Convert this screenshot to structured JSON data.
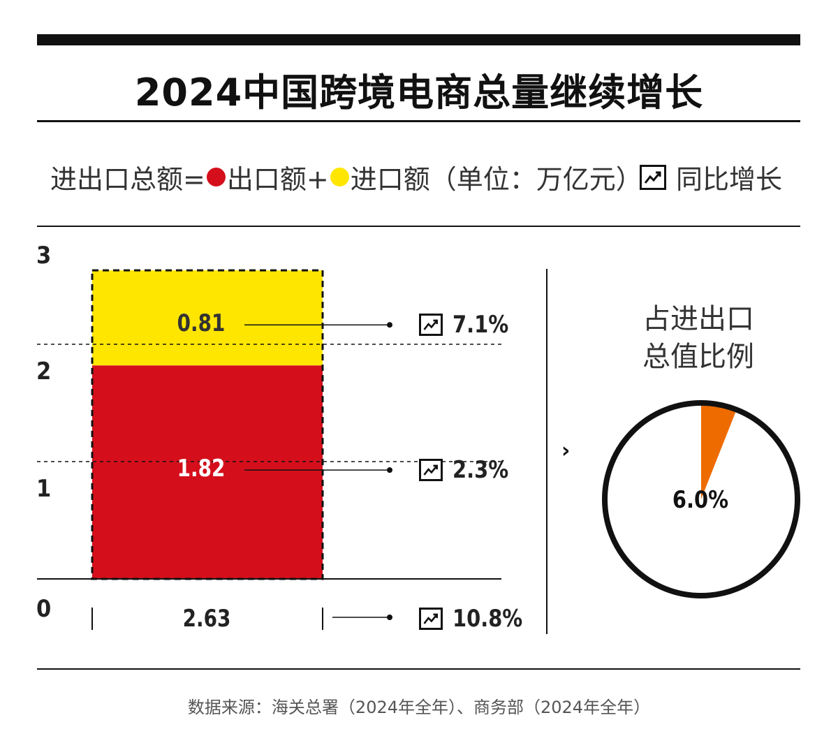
{
  "title": "2024中国跨境电商总量继续增长",
  "legend": {
    "formula_prefix": "进出口总额=",
    "export_label": "出口额+",
    "import_label": "进口额（单位：万亿元）",
    "growth_label": "同比增长",
    "colors": {
      "export": "#d40f1b",
      "import": "#ffe600",
      "share": "#ee6b00"
    }
  },
  "pie": {
    "title_line1": "占进出口",
    "title_line2": "总值比例",
    "share_label": "6.0%"
  },
  "chevron": "›",
  "source": "数据来源：海关总署（2024年全年）、商务部（2024年全年）",
  "chart_data": [
    {
      "type": "bar",
      "stacked": true,
      "categories": [
        "2024"
      ],
      "series": [
        {
          "name": "出口额",
          "values": [
            1.82
          ],
          "label": "1.82",
          "growth": "2.3%",
          "color": "#d40f1b"
        },
        {
          "name": "进口额",
          "values": [
            0.81
          ],
          "label": "0.81",
          "growth": "7.1%",
          "color": "#ffe600"
        }
      ],
      "total": {
        "value": 2.63,
        "label": "2.63",
        "growth": "10.8%"
      },
      "yticks": [
        "0",
        "1",
        "2",
        "3"
      ],
      "ylim": [
        0,
        3
      ],
      "grid": true
    },
    {
      "type": "pie",
      "slices": [
        {
          "label": "6.0%",
          "value": 6.0,
          "color": "#ee6b00"
        },
        {
          "label": "",
          "value": 94.0,
          "color": "#ffffff"
        }
      ]
    }
  ]
}
